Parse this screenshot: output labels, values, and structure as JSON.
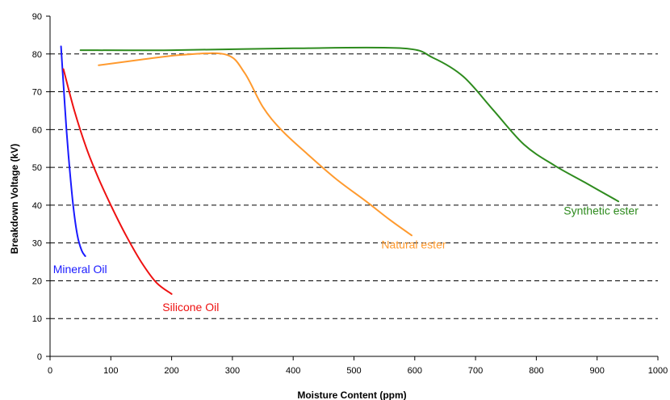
{
  "chart_data": {
    "type": "line",
    "xlabel": "Moisture Content (ppm)",
    "ylabel": "Breakdown Voltage (kV)",
    "xlim": [
      0,
      1000
    ],
    "ylim": [
      0,
      90
    ],
    "xticks": [
      "0",
      "100",
      "200",
      "300",
      "400",
      "500",
      "600",
      "700",
      "800",
      "900",
      "1000"
    ],
    "yticks": [
      "0",
      "10",
      "20",
      "30",
      "40",
      "50",
      "60",
      "70",
      "80",
      "90"
    ],
    "grid": "horizontal dashed",
    "series": [
      {
        "name": "Mineral Oil",
        "color": "#1a1aff",
        "x": [
          18,
          22,
          27,
          32,
          38,
          45,
          52,
          58
        ],
        "y": [
          82,
          72,
          60,
          50,
          40,
          32,
          28,
          26.5
        ]
      },
      {
        "name": "Silicone Oil",
        "color": "#ee1111",
        "x": [
          22,
          40,
          60,
          80,
          100,
          125,
          150,
          175,
          200
        ],
        "y": [
          76,
          65,
          55,
          47,
          40,
          32,
          25,
          19.5,
          16.5
        ]
      },
      {
        "name": "Natural ester",
        "color": "#ff9a2e",
        "x": [
          80,
          150,
          220,
          290,
          320,
          350,
          380,
          420,
          470,
          520,
          560,
          595
        ],
        "y": [
          77,
          78.5,
          79.8,
          79.8,
          75,
          66,
          60,
          54,
          47,
          41,
          36,
          32
        ]
      },
      {
        "name": "Synthetic ester",
        "color": "#2e8b1e",
        "x": [
          50,
          200,
          400,
          580,
          630,
          680,
          730,
          780,
          830,
          880,
          935
        ],
        "y": [
          81,
          81,
          81.5,
          81.5,
          79,
          74,
          65,
          56,
          50.5,
          46,
          41
        ]
      }
    ]
  }
}
